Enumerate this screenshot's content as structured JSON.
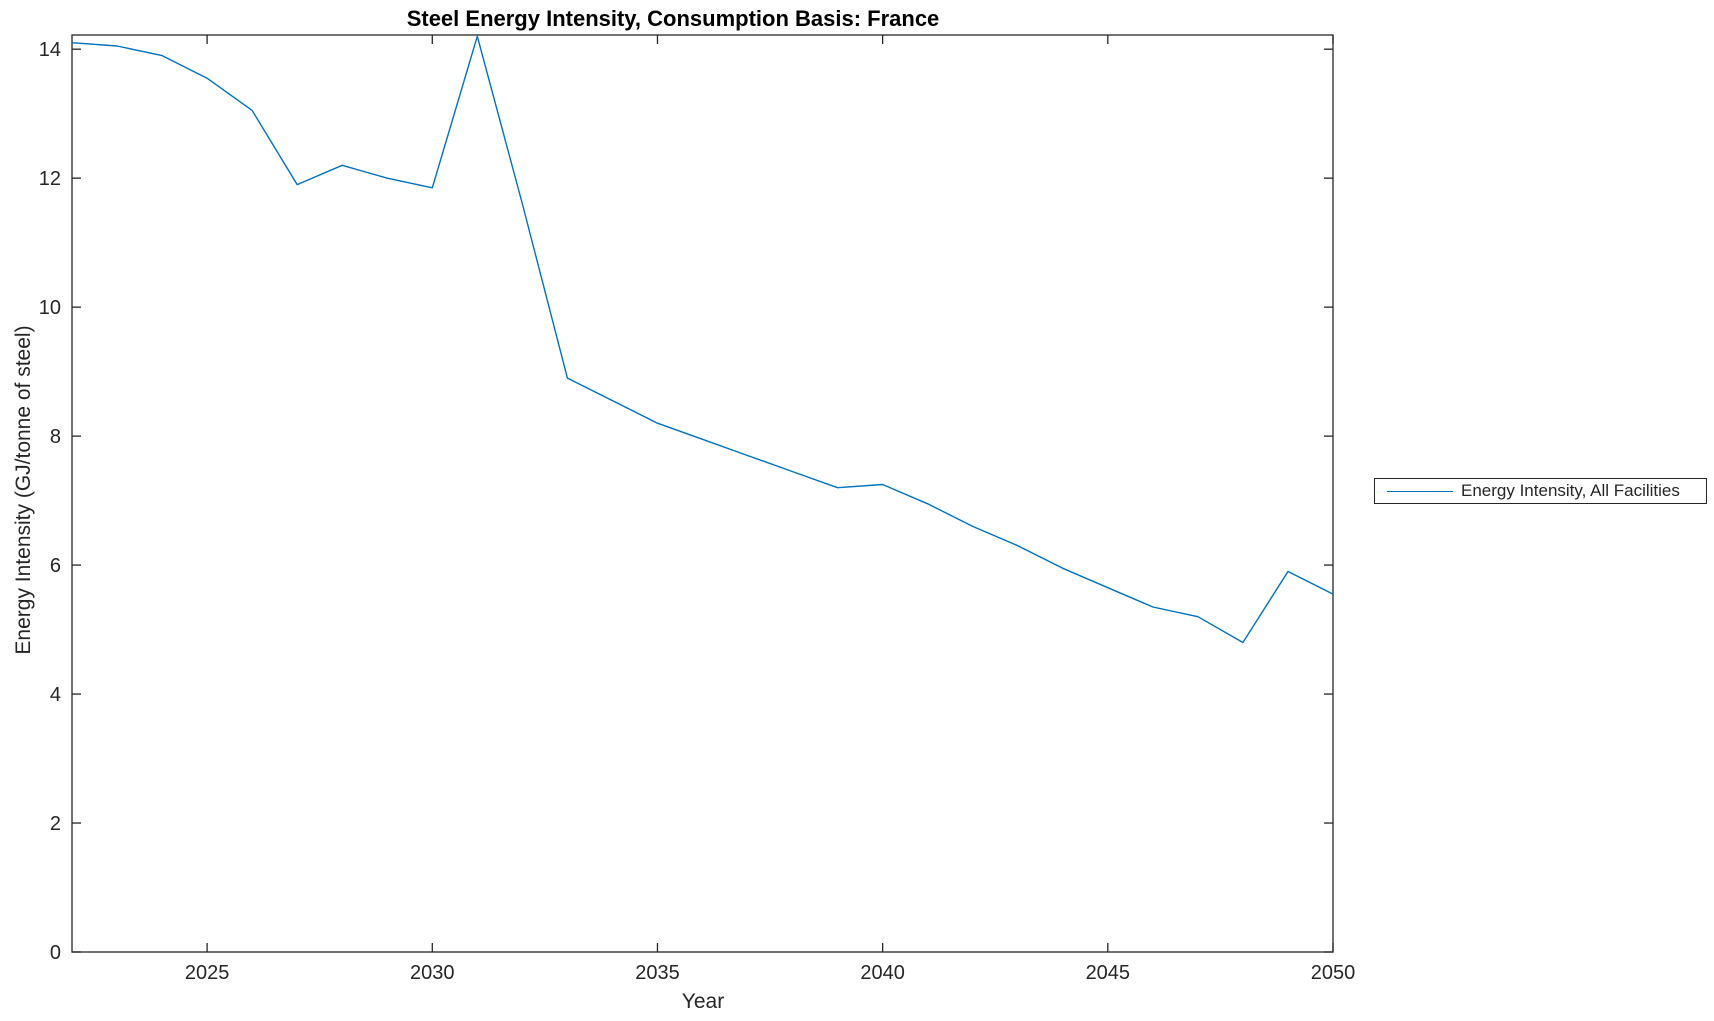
{
  "figure": {
    "title": "Steel Energy Intensity, Consumption Basis: France",
    "xlabel": "Year",
    "ylabel": "Energy Intensity (GJ/tonne of steel)"
  },
  "legend": {
    "label": "Energy Intensity, All Facilities"
  },
  "colors": {
    "line": "#0072BD",
    "axis": "#262626",
    "title_text": "#000000",
    "background": "#ffffff"
  },
  "chart_data": {
    "type": "line",
    "title": "Steel Energy Intensity, Consumption Basis: France",
    "xlabel": "Year",
    "ylabel": "Energy Intensity (GJ/tonne of steel)",
    "legend_entries": [
      "Energy Intensity, All Facilities"
    ],
    "legend_position": "right-outside",
    "grid": false,
    "xlim": [
      2022,
      2050
    ],
    "ylim": [
      0,
      14.22
    ],
    "xticks": [
      2025,
      2030,
      2035,
      2040,
      2045,
      2050
    ],
    "yticks": [
      0,
      2,
      4,
      6,
      8,
      10,
      12,
      14
    ],
    "x": [
      2022,
      2023,
      2024,
      2025,
      2026,
      2027,
      2028,
      2029,
      2030,
      2031,
      2032,
      2033,
      2034,
      2035,
      2036,
      2037,
      2038,
      2039,
      2040,
      2041,
      2042,
      2043,
      2044,
      2045,
      2046,
      2047,
      2048,
      2049,
      2050
    ],
    "series": [
      {
        "name": "Energy Intensity, All Facilities",
        "values": [
          14.1,
          14.05,
          13.9,
          13.55,
          13.05,
          11.9,
          12.2,
          12.0,
          11.85,
          14.2,
          11.6,
          8.9,
          8.55,
          8.2,
          7.95,
          7.7,
          7.45,
          7.2,
          7.25,
          6.95,
          6.6,
          6.3,
          5.95,
          5.65,
          5.35,
          5.2,
          4.8,
          5.9,
          5.55
        ]
      }
    ]
  }
}
